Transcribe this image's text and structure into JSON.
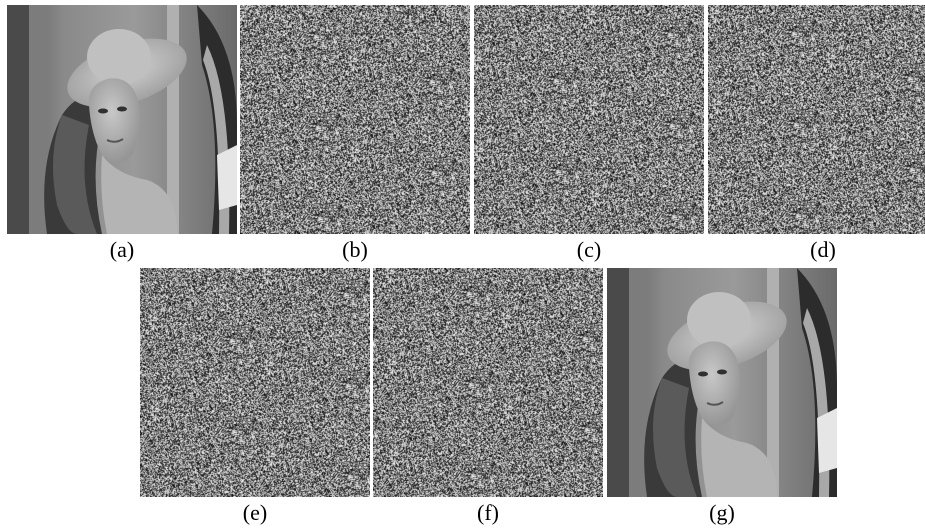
{
  "figure": {
    "panels": [
      {
        "id": "a",
        "label": "(a)",
        "kind": "photo-plain"
      },
      {
        "id": "b",
        "label": "(b)",
        "kind": "noise"
      },
      {
        "id": "c",
        "label": "(c)",
        "kind": "noise"
      },
      {
        "id": "d",
        "label": "(d)",
        "kind": "noise"
      },
      {
        "id": "e",
        "label": "(e)",
        "kind": "noise"
      },
      {
        "id": "f",
        "label": "(f)",
        "kind": "noise"
      },
      {
        "id": "g",
        "label": "(g)",
        "kind": "photo-decrypted"
      }
    ]
  }
}
